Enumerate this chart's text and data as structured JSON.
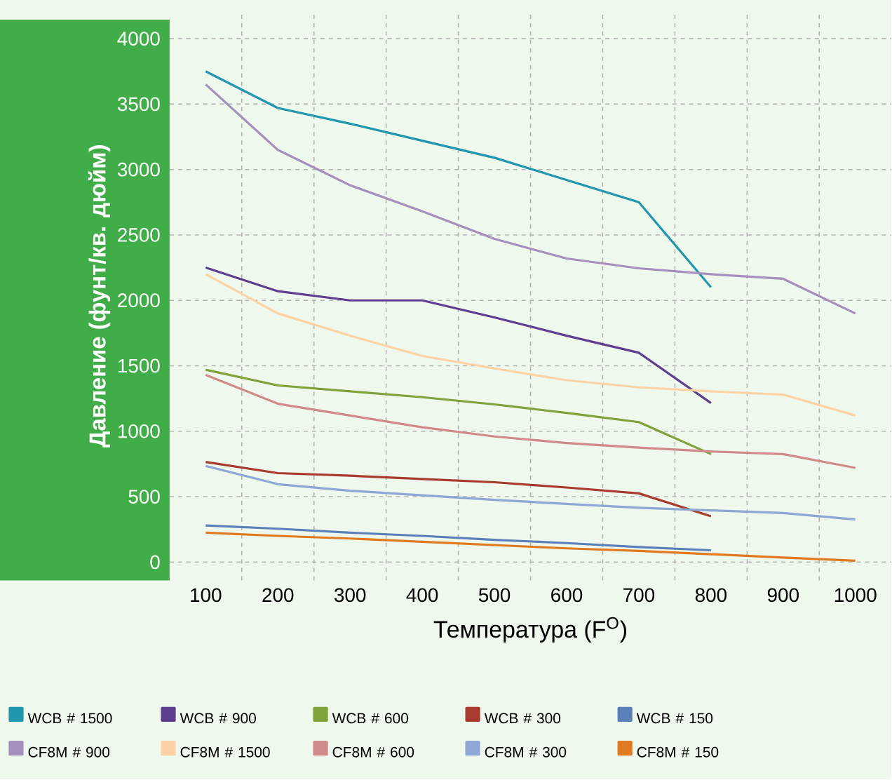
{
  "chart_data": {
    "type": "line",
    "xlabel": "Температура (F$^{O}$)",
    "ylabel": "Давление (фунт/кв. дюйм)",
    "x": [
      100,
      200,
      300,
      400,
      500,
      600,
      700,
      800,
      900,
      1000
    ],
    "xlim": [
      50,
      1050
    ],
    "xticks": [
      100,
      200,
      300,
      400,
      500,
      600,
      700,
      800,
      900,
      1000
    ],
    "ylim": [
      -140,
      4210
    ],
    "yticks": [
      0,
      500,
      1000,
      1500,
      2000,
      2500,
      3000,
      3500,
      4000
    ],
    "grid": true,
    "legend": "bottom",
    "marker": "none",
    "line_style": "solid",
    "series": [
      {
        "name": "WCB # 1500",
        "color": "#2196ae",
        "values": [
          3750,
          3470,
          3350,
          3220,
          3090,
          2920,
          2750,
          2100,
          null,
          null
        ]
      },
      {
        "name": "WCB # 900",
        "color": "#5e3f8f",
        "values": [
          2250,
          2070,
          2000,
          2000,
          1870,
          1730,
          1600,
          1215,
          null,
          null
        ]
      },
      {
        "name": "WCB # 600",
        "color": "#7fa23a",
        "values": [
          1470,
          1350,
          1305,
          1260,
          1205,
          1140,
          1070,
          825,
          null,
          null
        ]
      },
      {
        "name": "WCB # 300",
        "color": "#a93a2e",
        "values": [
          765,
          680,
          660,
          635,
          610,
          570,
          525,
          350,
          null,
          null
        ]
      },
      {
        "name": "WCB # 150",
        "color": "#5b7fb9",
        "values": [
          280,
          255,
          225,
          200,
          170,
          145,
          115,
          90,
          null,
          null
        ]
      },
      {
        "name": "CF8M # 900",
        "color": "#a58fbd",
        "values": [
          3650,
          3150,
          2880,
          2680,
          2470,
          2320,
          2245,
          2200,
          2165,
          1900
        ]
      },
      {
        "name": "CF8M # 1500",
        "color": "#fdd3a5",
        "values": [
          2200,
          1900,
          1730,
          1575,
          1480,
          1390,
          1335,
          1305,
          1280,
          1120
        ]
      },
      {
        "name": "CF8M # 600",
        "color": "#d08a8a",
        "values": [
          1430,
          1210,
          1120,
          1030,
          960,
          910,
          875,
          845,
          825,
          720
        ]
      },
      {
        "name": "CF8M # 300",
        "color": "#8ea7d4",
        "values": [
          735,
          595,
          545,
          510,
          475,
          445,
          415,
          395,
          375,
          325
        ]
      },
      {
        "name": "CF8M # 150",
        "color": "#e07a20",
        "values": [
          225,
          200,
          180,
          155,
          130,
          105,
          85,
          60,
          35,
          10
        ]
      }
    ]
  }
}
